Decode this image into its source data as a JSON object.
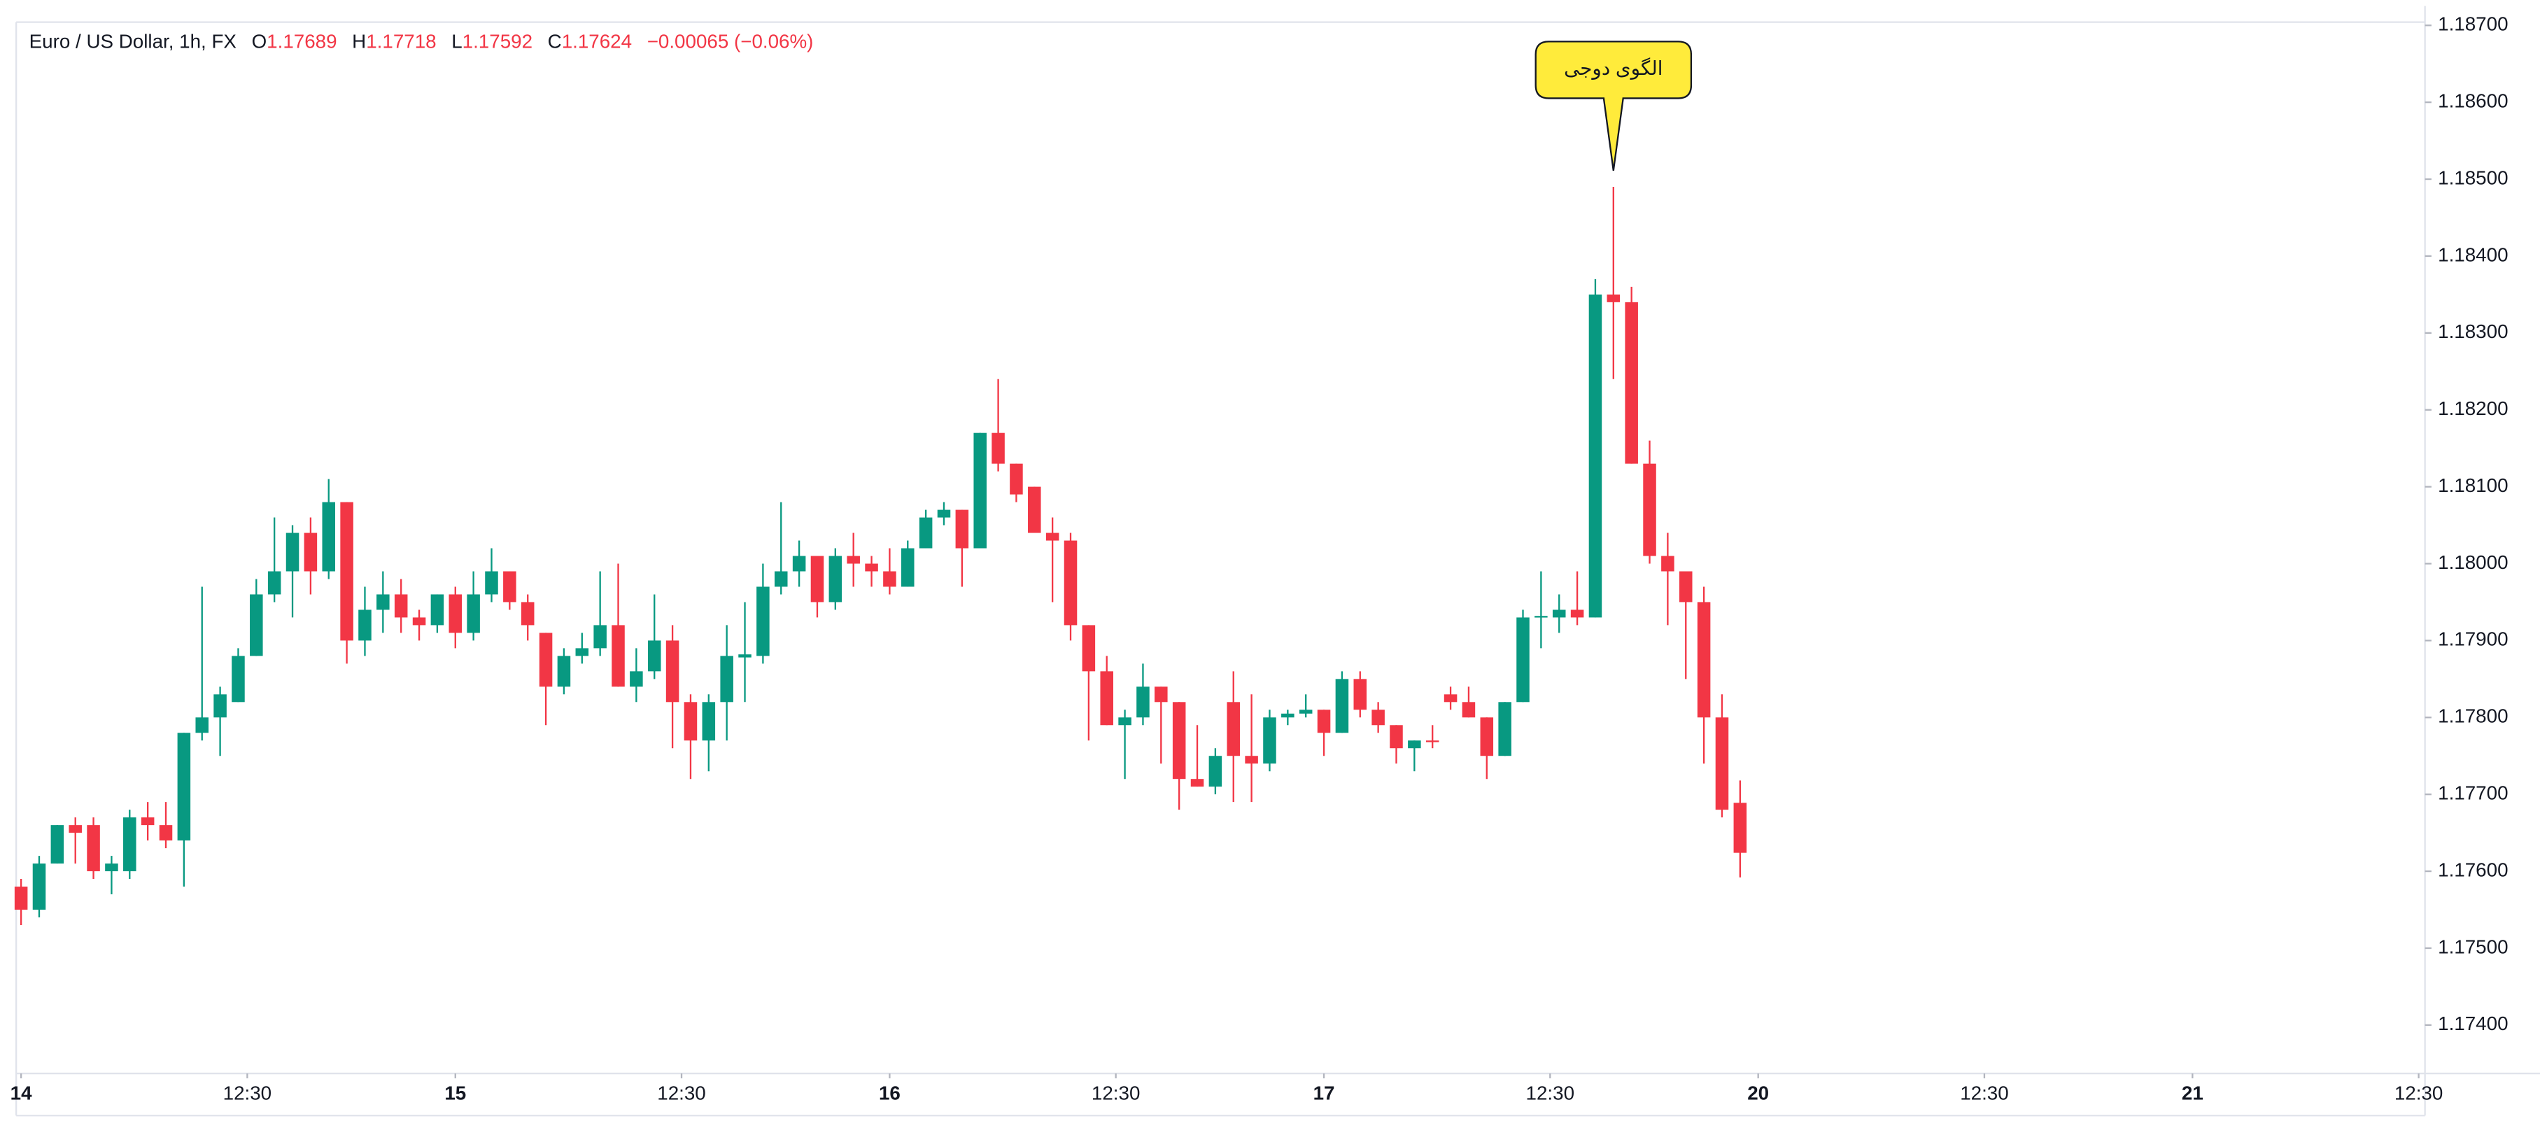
{
  "header": {
    "symbol": "Euro / US Dollar, 1h, FX",
    "open_label": "O",
    "open": "1.17689",
    "high_label": "H",
    "high": "1.17718",
    "low_label": "L",
    "low": "1.17592",
    "close_label": "C",
    "close": "1.17624",
    "change": "−0.00065 (−0.06%)"
  },
  "chart_data": {
    "type": "candlestick",
    "open": [
      1.1758,
      1.1755,
      1.1761,
      1.1766,
      1.1766,
      1.176,
      1.176,
      1.1767,
      1.1766,
      1.1764,
      1.1778,
      1.178,
      1.1782,
      1.1788,
      1.1796,
      1.1799,
      1.1804,
      1.1799,
      1.1808,
      1.179,
      1.1794,
      1.1796,
      1.1793,
      1.1792,
      1.1796,
      1.1791,
      1.1796,
      1.1799,
      1.1795,
      1.1791,
      1.1784,
      1.1788,
      1.1789,
      1.1792,
      1.1784,
      1.1786,
      1.179,
      1.1782,
      1.1777,
      1.1782,
      1.17878,
      1.1788,
      1.1797,
      1.1799,
      1.1801,
      1.1795,
      1.1801,
      1.18,
      1.1799,
      1.1797,
      1.1802,
      1.1806,
      1.1807,
      1.1802,
      1.1817,
      1.1813,
      1.181,
      1.1804,
      1.1803,
      1.1792,
      1.1786,
      1.1779,
      1.178,
      1.1784,
      1.1782,
      1.1772,
      1.1771,
      1.1782,
      1.1775,
      1.1774,
      1.178,
      1.17805,
      1.1781,
      1.1778,
      1.1785,
      1.1781,
      1.1779,
      1.1776,
      1.1777,
      1.1783,
      1.1782,
      1.178,
      1.1775,
      1.1782,
      1.1793,
      1.1793,
      1.1794,
      1.1793,
      1.1835,
      1.1834,
      1.1813,
      1.1801,
      1.1799,
      1.1795,
      1.178,
      1.17689
    ],
    "high": [
      1.1759,
      1.1762,
      1.1766,
      1.1767,
      1.1767,
      1.1762,
      1.1768,
      1.1769,
      1.1769,
      1.1778,
      1.1797,
      1.1784,
      1.1789,
      1.1798,
      1.1806,
      1.1805,
      1.1806,
      1.1811,
      1.1808,
      1.1797,
      1.1799,
      1.1798,
      1.1794,
      1.1796,
      1.1797,
      1.1799,
      1.1802,
      1.1799,
      1.1796,
      1.1791,
      1.1789,
      1.1791,
      1.1799,
      1.18,
      1.1789,
      1.1796,
      1.1792,
      1.1783,
      1.1783,
      1.1792,
      1.1795,
      1.18,
      1.1808,
      1.1803,
      1.1801,
      1.1802,
      1.1804,
      1.1801,
      1.1802,
      1.1803,
      1.1807,
      1.1808,
      1.1807,
      1.1817,
      1.1824,
      1.1813,
      1.181,
      1.1806,
      1.1804,
      1.1792,
      1.1788,
      1.1781,
      1.1787,
      1.1784,
      1.1782,
      1.1779,
      1.1776,
      1.1786,
      1.1783,
      1.1781,
      1.1781,
      1.1783,
      1.1781,
      1.1786,
      1.1786,
      1.1782,
      1.1779,
      1.1777,
      1.1779,
      1.1784,
      1.1784,
      1.178,
      1.1782,
      1.1794,
      1.1799,
      1.1796,
      1.1799,
      1.1837,
      1.1849,
      1.1836,
      1.1816,
      1.1804,
      1.1799,
      1.1797,
      1.1783,
      1.17718
    ],
    "low": [
      1.1753,
      1.1754,
      1.1761,
      1.1761,
      1.1759,
      1.1757,
      1.1759,
      1.1764,
      1.1763,
      1.1758,
      1.1777,
      1.1775,
      1.1782,
      1.1788,
      1.1795,
      1.1793,
      1.1796,
      1.1798,
      1.1787,
      1.1788,
      1.1791,
      1.1791,
      1.179,
      1.1791,
      1.1789,
      1.179,
      1.1795,
      1.1794,
      1.179,
      1.1779,
      1.1783,
      1.1787,
      1.1788,
      1.1784,
      1.1782,
      1.1785,
      1.1776,
      1.1772,
      1.1773,
      1.1777,
      1.1782,
      1.1787,
      1.1796,
      1.1797,
      1.1793,
      1.1794,
      1.1797,
      1.1797,
      1.1796,
      1.1797,
      1.1802,
      1.1805,
      1.1797,
      1.1802,
      1.1812,
      1.1808,
      1.1804,
      1.1795,
      1.179,
      1.1777,
      1.1779,
      1.1772,
      1.1779,
      1.1774,
      1.1768,
      1.1771,
      1.177,
      1.1769,
      1.1769,
      1.1773,
      1.1779,
      1.178,
      1.1775,
      1.1778,
      1.178,
      1.1778,
      1.1774,
      1.1773,
      1.1776,
      1.1781,
      1.178,
      1.1772,
      1.1775,
      1.1782,
      1.1789,
      1.1791,
      1.1792,
      1.1793,
      1.1824,
      1.1813,
      1.18,
      1.1792,
      1.1785,
      1.1774,
      1.1767,
      1.17592
    ],
    "close": [
      1.1755,
      1.1761,
      1.1766,
      1.1765,
      1.176,
      1.1761,
      1.1767,
      1.1766,
      1.1764,
      1.1778,
      1.178,
      1.1783,
      1.1788,
      1.1796,
      1.1799,
      1.1804,
      1.1799,
      1.1808,
      1.179,
      1.1794,
      1.1796,
      1.1793,
      1.1792,
      1.1796,
      1.1791,
      1.1796,
      1.1799,
      1.1795,
      1.1792,
      1.1784,
      1.1788,
      1.1789,
      1.1792,
      1.1784,
      1.1786,
      1.179,
      1.1782,
      1.1777,
      1.1782,
      1.1788,
      1.17882,
      1.1797,
      1.1799,
      1.1801,
      1.1795,
      1.1801,
      1.18,
      1.1799,
      1.1797,
      1.1802,
      1.1806,
      1.1807,
      1.1802,
      1.1817,
      1.1813,
      1.1809,
      1.1804,
      1.1803,
      1.1792,
      1.1786,
      1.1779,
      1.178,
      1.1784,
      1.1782,
      1.1772,
      1.1771,
      1.1775,
      1.1775,
      1.1774,
      1.178,
      1.17805,
      1.1781,
      1.1778,
      1.1785,
      1.1781,
      1.1779,
      1.1776,
      1.1777,
      1.17768,
      1.1782,
      1.178,
      1.1775,
      1.1782,
      1.1793,
      1.17932,
      1.1794,
      1.1793,
      1.1835,
      1.1834,
      1.1813,
      1.1801,
      1.1799,
      1.1795,
      1.178,
      1.1768,
      1.17624
    ],
    "up_color": "#089981",
    "down_color": "#f23645",
    "annotations": [
      {
        "text": "الگوی دوجی",
        "x": 88,
        "color": "#ffeb3b"
      }
    ],
    "xlim": [
      -0.27,
      132.85
    ],
    "xticks": [
      {
        "value": 0,
        "label": "14"
      },
      {
        "value": 12.5,
        "label": "12:30"
      },
      {
        "value": 24,
        "label": "15"
      },
      {
        "value": 36.5,
        "label": "12:30"
      },
      {
        "value": 48,
        "label": "16"
      },
      {
        "value": 60.5,
        "label": "12:30"
      },
      {
        "value": 72,
        "label": "17"
      },
      {
        "value": 84.5,
        "label": "12:30"
      },
      {
        "value": 96,
        "label": "20"
      },
      {
        "value": 108.5,
        "label": "12:30"
      },
      {
        "value": 120,
        "label": "21"
      },
      {
        "value": 132.5,
        "label": "12:30"
      }
    ],
    "ylim": [
      1.17337,
      1.187
    ],
    "yticks": [
      {
        "value": 1.174,
        "label": "1.17400"
      },
      {
        "value": 1.175,
        "label": "1.17500"
      },
      {
        "value": 1.176,
        "label": "1.17600"
      },
      {
        "value": 1.177,
        "label": "1.17700"
      },
      {
        "value": 1.178,
        "label": "1.17800"
      },
      {
        "value": 1.179,
        "label": "1.17900"
      },
      {
        "value": 1.18,
        "label": "1.18000"
      },
      {
        "value": 1.181,
        "label": "1.18100"
      },
      {
        "value": 1.182,
        "label": "1.18200"
      },
      {
        "value": 1.183,
        "label": "1.18300"
      },
      {
        "value": 1.184,
        "label": "1.18400"
      },
      {
        "value": 1.185,
        "label": "1.18500"
      },
      {
        "value": 1.186,
        "label": "1.18600"
      },
      {
        "value": 1.187,
        "label": "1.18700"
      }
    ]
  }
}
